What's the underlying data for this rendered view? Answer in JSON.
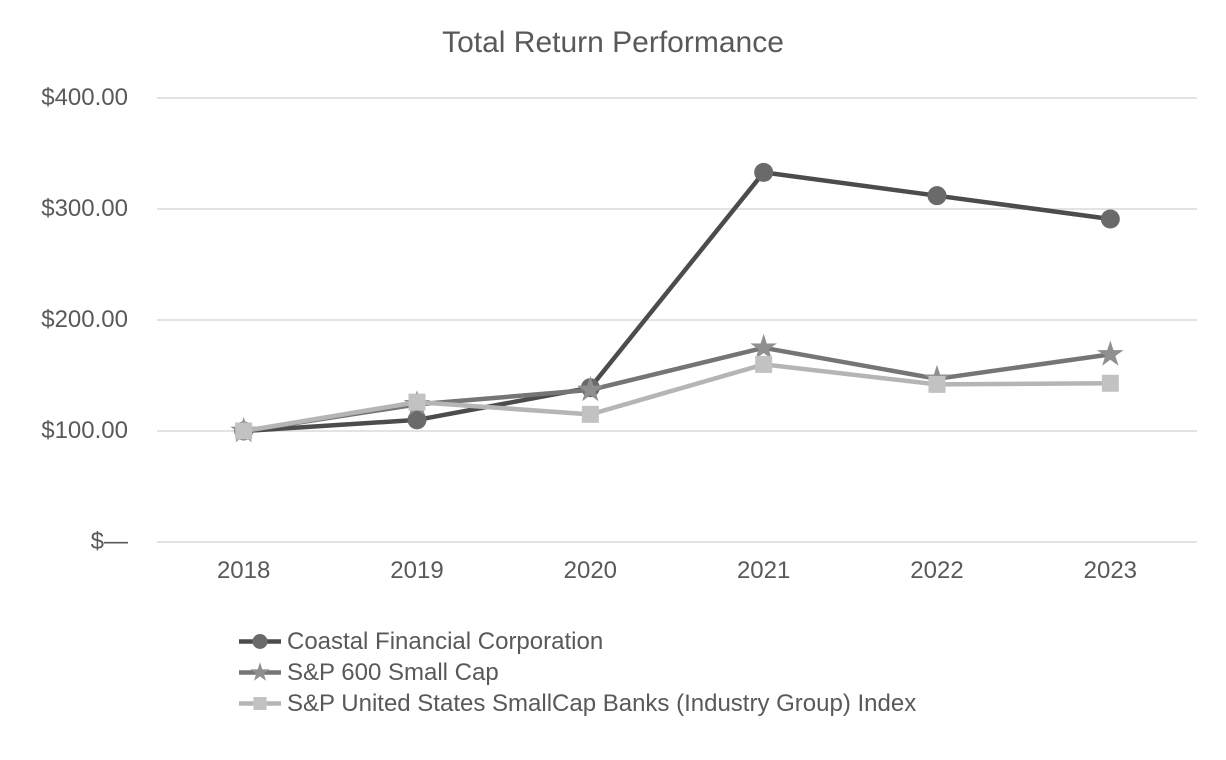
{
  "chart_data": {
    "type": "line",
    "title": "Total Return Performance",
    "categories": [
      "2018",
      "2019",
      "2020",
      "2021",
      "2022",
      "2023"
    ],
    "series": [
      {
        "name": "Coastal Financial Corporation",
        "marker": "circle",
        "line_color": "#4c4c4c",
        "marker_color": "#6a6a6a",
        "values": [
          100,
          110,
          139,
          333,
          312,
          291
        ]
      },
      {
        "name": "S&P 600 Small Cap",
        "marker": "star",
        "line_color": "#757575",
        "marker_color": "#8f8f8f",
        "values": [
          100,
          124,
          137,
          175,
          147,
          169
        ]
      },
      {
        "name": "S&P United States SmallCap Banks (Industry Group) Index",
        "marker": "square",
        "line_color": "#b5b5b5",
        "marker_color": "#c2c2c2",
        "values": [
          100,
          126,
          115,
          160,
          142,
          143
        ]
      }
    ],
    "y_ticks": [
      {
        "label": "$400.00",
        "value": 400
      },
      {
        "label": "$300.00",
        "value": 300
      },
      {
        "label": "$200.00",
        "value": 200
      },
      {
        "label": "$100.00",
        "value": 100
      },
      {
        "label": "$—",
        "value": 0
      }
    ],
    "ylim": [
      0,
      400
    ],
    "xlabel": "",
    "ylabel": "",
    "grid": "horizontal",
    "gridline_color": "#e3e3e3",
    "text_color": "#595959",
    "background": "#ffffff",
    "legend_position": "bottom-left"
  }
}
